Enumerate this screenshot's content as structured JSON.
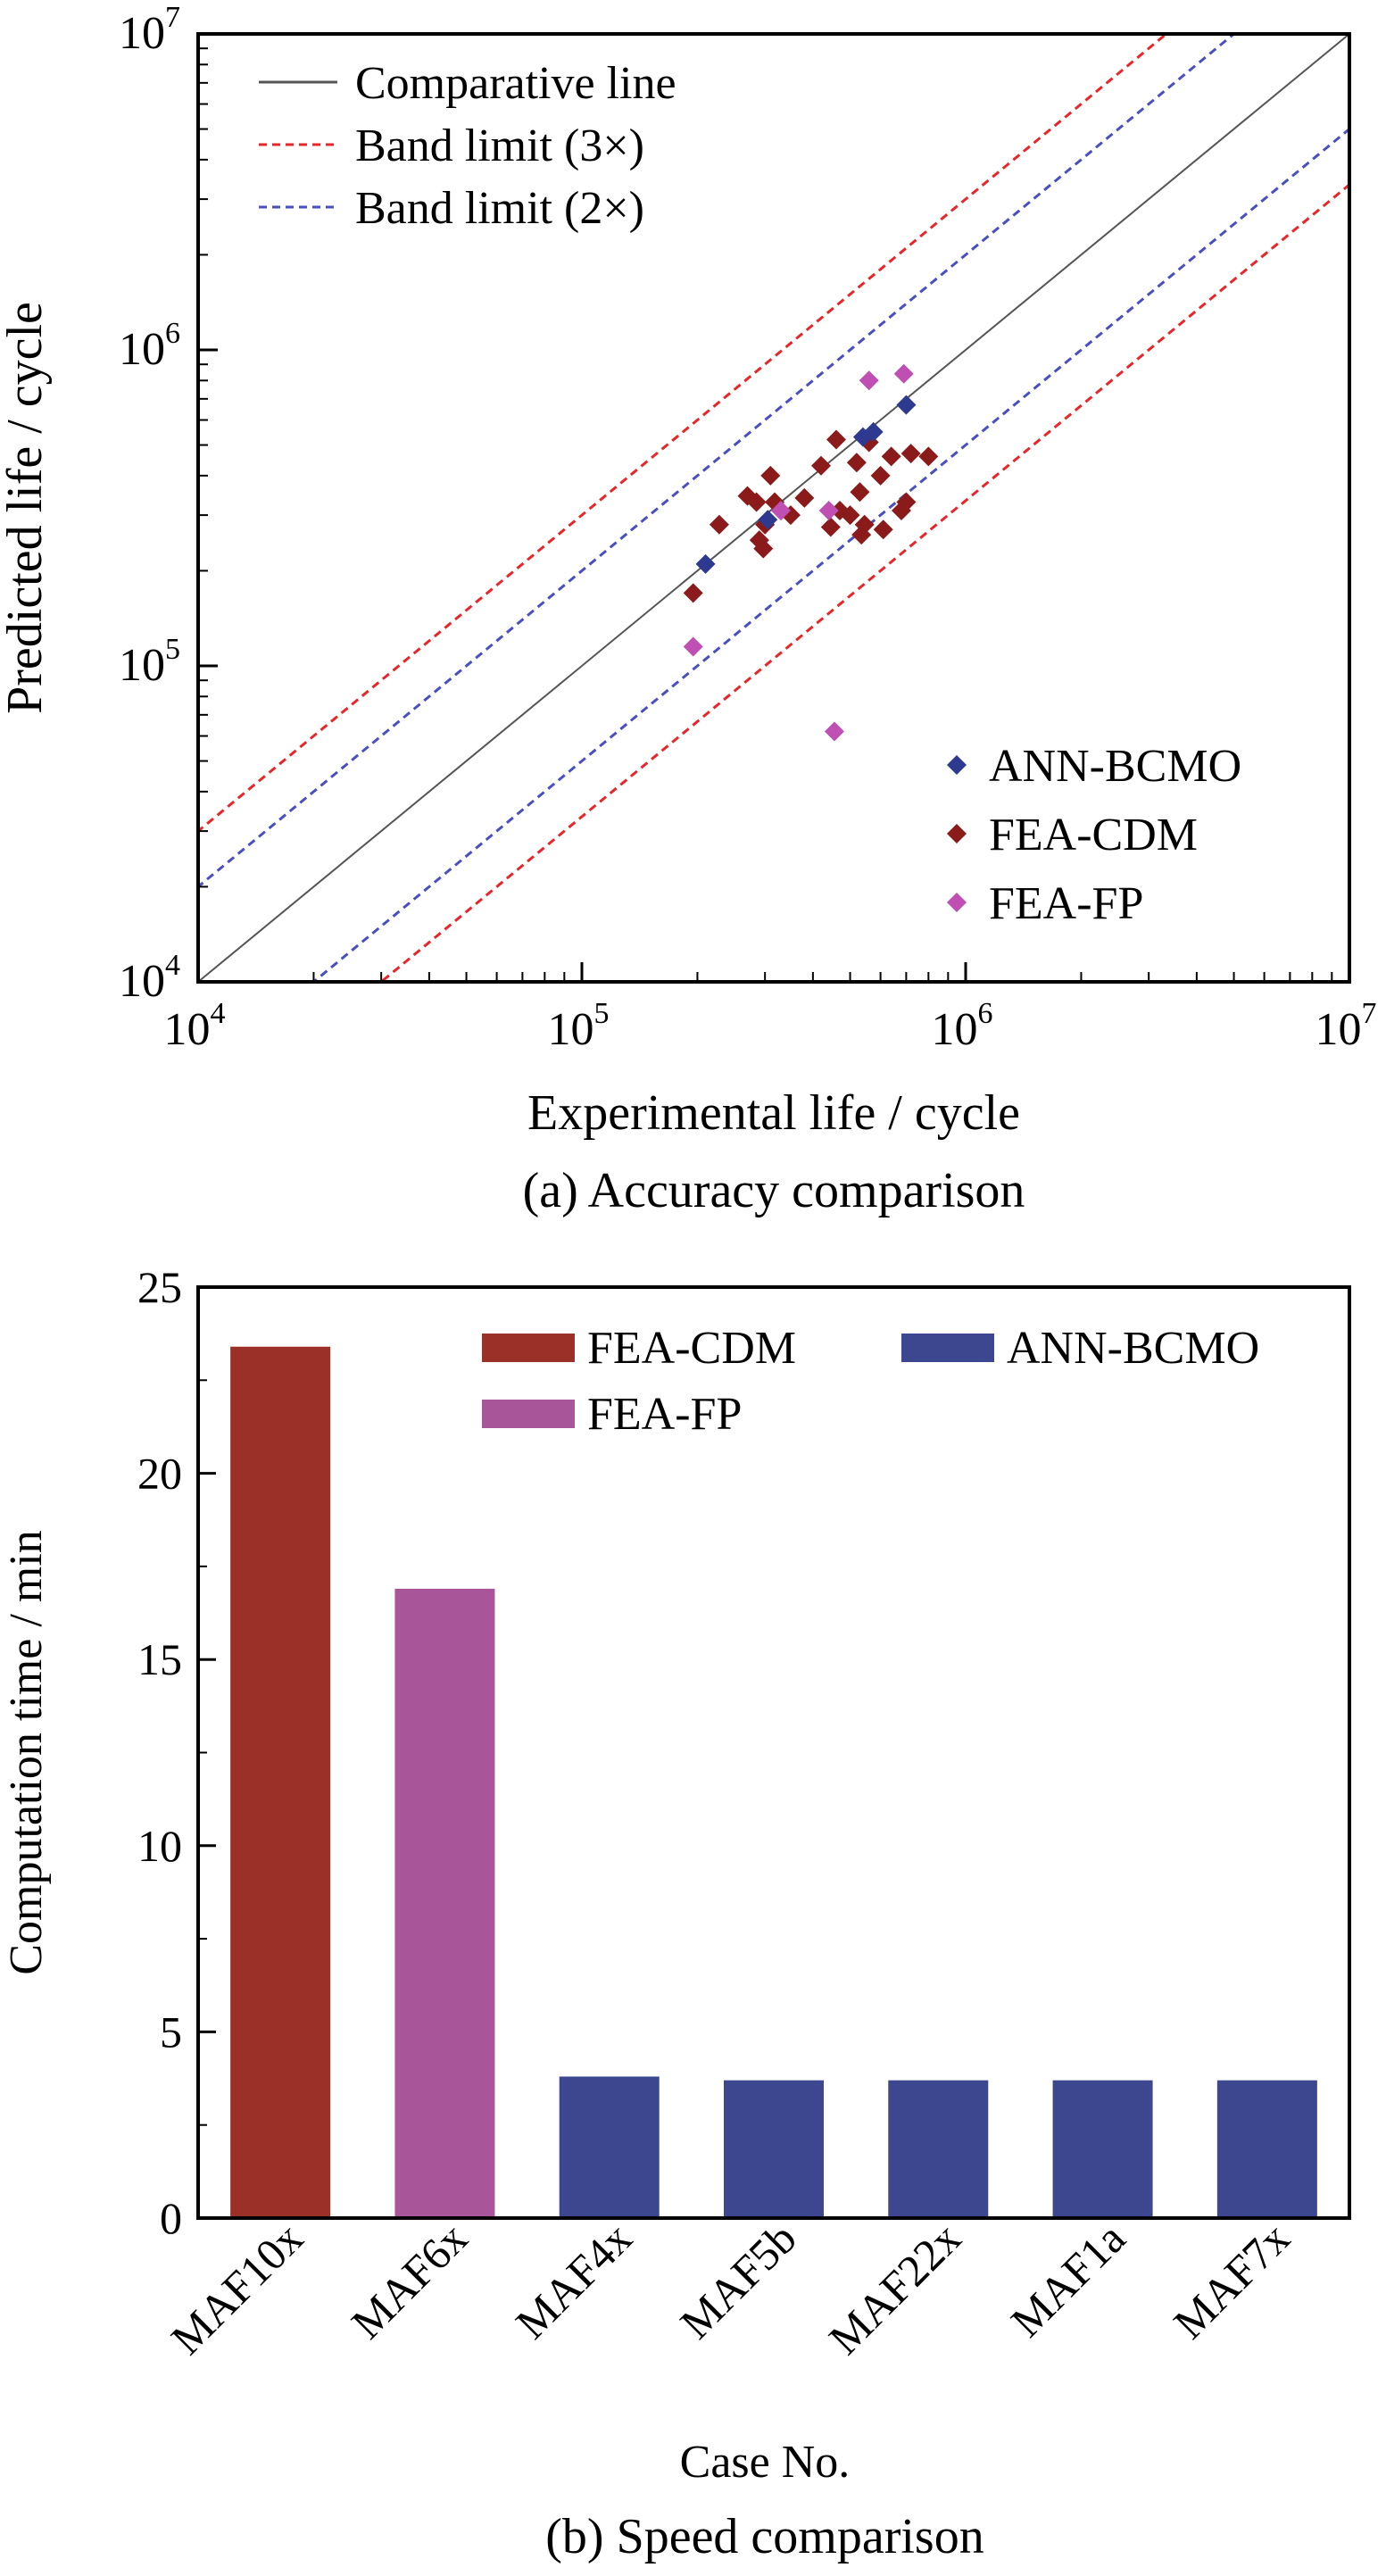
{
  "chart_data": [
    {
      "type": "scatter",
      "x_scale": "log",
      "y_scale": "log",
      "xlabel": "Experimental life / cycle",
      "ylabel": "Predicted life / cycle",
      "caption": "(a) Accuracy comparison",
      "xlim": [
        10000,
        10000000
      ],
      "ylim": [
        10000,
        10000000
      ],
      "tick_labels": [
        {
          "base": "10",
          "exp": "4"
        },
        {
          "base": "10",
          "exp": "5"
        },
        {
          "base": "10",
          "exp": "6"
        },
        {
          "base": "10",
          "exp": "7"
        }
      ],
      "lines": [
        {
          "name": "Comparative line",
          "factor": 1,
          "style": "solid",
          "color": "#555555"
        },
        {
          "name": "Band limit (3×)",
          "factor": 3,
          "style": "dashed",
          "color": "#e8262a"
        },
        {
          "name": "Band limit (2×)",
          "factor": 2,
          "style": "dashed",
          "color": "#4a4fbf"
        }
      ],
      "line_legend_position": "top-left",
      "point_legend_position": "bottom-right",
      "series": [
        {
          "name": "ANN-BCMO",
          "color": "#2e3a8f",
          "points": [
            [
              210000,
              210000
            ],
            [
              305000,
              290000
            ],
            [
              540000,
              530000
            ],
            [
              575000,
              550000
            ],
            [
              700000,
              670000
            ]
          ]
        },
        {
          "name": "FEA-CDM",
          "color": "#8b1a1a",
          "points": [
            [
              195000,
              170000
            ],
            [
              228000,
              280000
            ],
            [
              270000,
              345000
            ],
            [
              285000,
              330000
            ],
            [
              290000,
              250000
            ],
            [
              297000,
              235000
            ],
            [
              300000,
              280000
            ],
            [
              310000,
              400000
            ],
            [
              318000,
              330000
            ],
            [
              330000,
              310000
            ],
            [
              350000,
              300000
            ],
            [
              380000,
              340000
            ],
            [
              420000,
              430000
            ],
            [
              445000,
              275000
            ],
            [
              460000,
              520000
            ],
            [
              470000,
              310000
            ],
            [
              500000,
              300000
            ],
            [
              520000,
              440000
            ],
            [
              530000,
              355000
            ],
            [
              535000,
              260000
            ],
            [
              545000,
              280000
            ],
            [
              560000,
              510000
            ],
            [
              600000,
              400000
            ],
            [
              610000,
              270000
            ],
            [
              640000,
              460000
            ],
            [
              680000,
              310000
            ],
            [
              700000,
              330000
            ],
            [
              720000,
              470000
            ],
            [
              800000,
              460000
            ]
          ]
        },
        {
          "name": "FEA-FP",
          "color": "#c04fb4",
          "points": [
            [
              195000,
              115000
            ],
            [
              330000,
              310000
            ],
            [
              440000,
              310000
            ],
            [
              455000,
              62000
            ],
            [
              560000,
              800000
            ],
            [
              690000,
              840000
            ]
          ]
        }
      ]
    },
    {
      "type": "bar",
      "xlabel": "Case No.",
      "ylabel": "Computation time / min",
      "caption": "(b) Speed comparison",
      "ylim": [
        0,
        25
      ],
      "yticks": [
        "0",
        "5",
        "10",
        "15",
        "20",
        "25"
      ],
      "legend_position": "top-right",
      "categories": [
        "MAF10x",
        "MAF6x",
        "MAF4x",
        "MAF5b",
        "MAF22x",
        "MAF1a",
        "MAF7x"
      ],
      "values": [
        23.4,
        16.9,
        3.8,
        3.7,
        3.7,
        3.7,
        3.7
      ],
      "bar_series": [
        "FEA-CDM",
        "FEA-FP",
        "ANN-BCMO",
        "ANN-BCMO",
        "ANN-BCMO",
        "ANN-BCMO",
        "ANN-BCMO"
      ],
      "series": [
        {
          "name": "FEA-CDM",
          "color": "#9b3029"
        },
        {
          "name": "FEA-FP",
          "color": "#a8559a"
        },
        {
          "name": "ANN-BCMO",
          "color": "#3c4790"
        }
      ]
    }
  ]
}
